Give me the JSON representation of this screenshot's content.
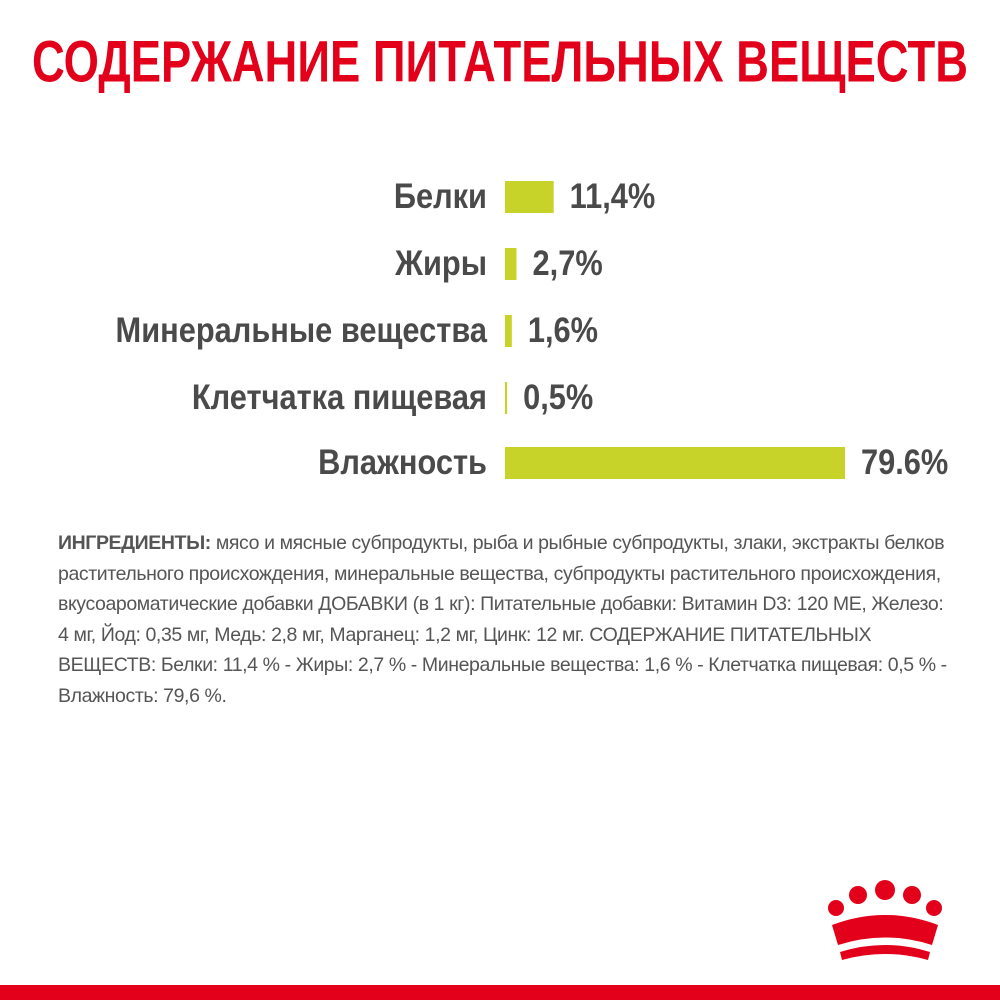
{
  "chart_data": {
    "type": "bar",
    "orientation": "horizontal",
    "title": "СОДЕРЖАНИЕ ПИТАТЕЛЬНЫХ ВЕЩЕСТВ",
    "categories": [
      "Белки",
      "Жиры",
      "Минеральные вещества",
      "Клетчатка пищевая",
      "Влажность"
    ],
    "values": [
      11.4,
      2.7,
      1.6,
      0.5,
      79.6
    ],
    "value_labels": [
      "11,4%",
      "2,7%",
      "1,6%",
      "0,5%",
      "79.6%"
    ],
    "color": "#c8d32a"
  },
  "ingredients": {
    "label": "ИНГРЕДИЕНТЫ:",
    "text": "мясо и мясные субпродукты, рыба и рыбные субпродукты, злаки, экстракты белков растительного происхождения, минеральные вещества, субпродукты растительного происхождения, вкусоароматические добавки ДОБАВКИ (в 1 кг): Питательные добавки: Витамин D3: 120 МЕ, Железо: 4 мг, Йод: 0,35 мг, Медь: 2,8 мг, Марганец: 1,2 мг, Цинк: 12 мг. СОДЕРЖАНИЕ ПИТАТЕЛЬНЫХ ВЕЩЕСТВ: Белки: 11,4 % - Жиры: 2,7 % - Минеральные вещества: 1,6 % - Клетчатка пищевая: 0,5 % - Влажность: 79,6 %."
  }
}
